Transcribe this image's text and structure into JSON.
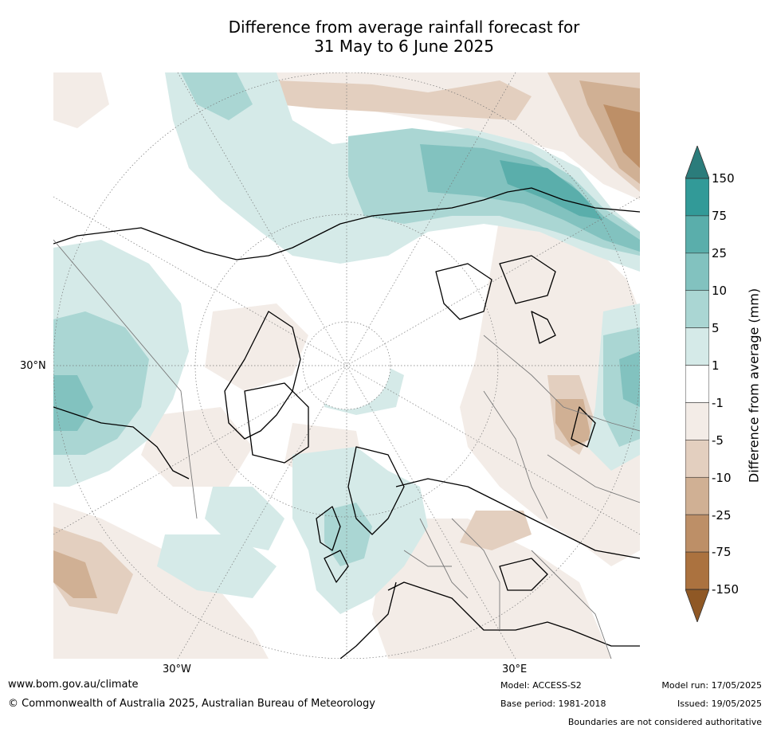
{
  "title_line1": "Difference from average rainfall forecast for",
  "title_line2": "31 May to 6 June 2025",
  "map": {
    "projection": "north polar stereographic",
    "lat_label": "30°N",
    "lon_labels": [
      "30°W",
      "30°E"
    ],
    "colorbar": {
      "title": "Difference from average (mm)",
      "ticks": [
        "150",
        "75",
        "25",
        "10",
        "5",
        "1",
        "-1",
        "-5",
        "-10",
        "-25",
        "-75",
        "-150"
      ],
      "colors": {
        "over": "#2b7c7b",
        "bands": [
          "#329a98",
          "#5aaeab",
          "#82c2bf",
          "#aad6d3",
          "#d5eae8",
          "#ffffff",
          "#f3ece7",
          "#e3cfbf",
          "#d0b094",
          "#bd8f67",
          "#ab723f"
        ],
        "under": "#8f5825"
      }
    }
  },
  "footer": {
    "url": "www.bom.gov.au/climate",
    "copyright": "© Commonwealth of Australia 2025, Australian Bureau of Meteorology",
    "model": "Model: ACCESS-S2",
    "base_period": "Base period: 1981-2018",
    "model_run": "Model run: 17/05/2025",
    "issued": "Issued: 19/05/2025",
    "disclaimer": "Boundaries are not considered authoritative"
  }
}
